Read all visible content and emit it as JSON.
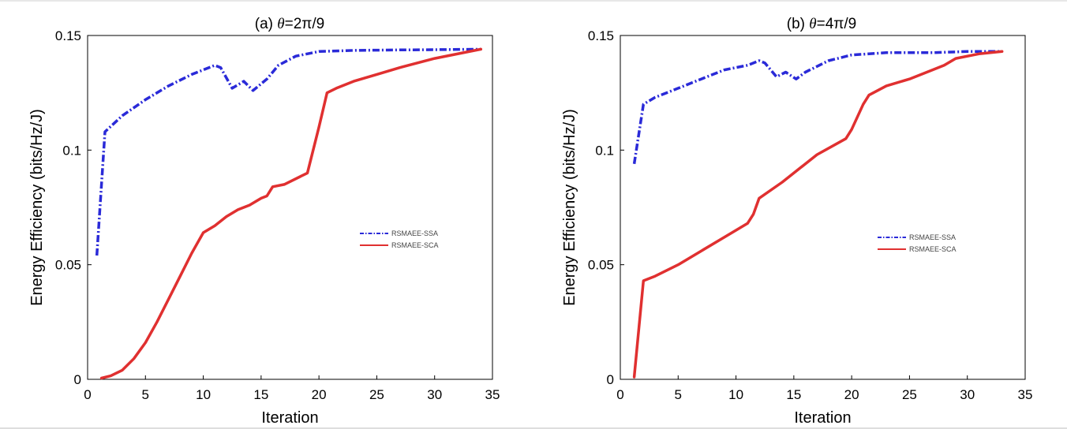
{
  "chart_data": [
    {
      "type": "line",
      "title_prefix": "(a) ",
      "title_symbol": "θ",
      "title_value": "=2π/9",
      "xlabel": "Iteration",
      "ylabel": "Energy Efficiency (bits/Hz/J)",
      "xlim": [
        0,
        35
      ],
      "ylim": [
        0,
        0.15
      ],
      "xticks": [
        "0",
        "5",
        "10",
        "15",
        "20",
        "25",
        "30",
        "35"
      ],
      "yticks": [
        "0",
        "0.05",
        "0.1",
        "0.15"
      ],
      "legend_position": "center-right",
      "series": [
        {
          "name": "RSMAEE-SSA",
          "color": "#2a2ad8",
          "style": "dash-dot",
          "x": [
            0.8,
            1.5,
            3,
            5,
            7,
            9,
            11,
            11.5,
            12.5,
            13.5,
            14.3,
            15.5,
            16.5,
            18,
            20,
            23,
            27,
            30,
            34
          ],
          "y": [
            0.054,
            0.108,
            0.115,
            0.122,
            0.128,
            0.133,
            0.137,
            0.136,
            0.127,
            0.13,
            0.126,
            0.131,
            0.137,
            0.141,
            0.143,
            0.1435,
            0.1437,
            0.1438,
            0.144
          ]
        },
        {
          "name": "RSMAEE-SCA",
          "color": "#e03030",
          "style": "solid",
          "x": [
            1.2,
            2,
            3,
            4,
            5,
            6,
            7,
            8,
            9,
            10,
            11,
            12,
            13,
            14,
            15,
            15.5,
            16,
            17,
            19,
            20,
            20.7,
            21.5,
            23,
            25,
            27,
            30,
            34
          ],
          "y": [
            0.0005,
            0.0015,
            0.004,
            0.009,
            0.016,
            0.025,
            0.035,
            0.045,
            0.055,
            0.064,
            0.067,
            0.071,
            0.074,
            0.076,
            0.079,
            0.08,
            0.084,
            0.085,
            0.09,
            0.11,
            0.125,
            0.127,
            0.13,
            0.133,
            0.136,
            0.14,
            0.144
          ]
        }
      ]
    },
    {
      "type": "line",
      "title_prefix": "(b) ",
      "title_symbol": "θ",
      "title_value": "=4π/9",
      "xlabel": "Iteration",
      "ylabel": "Energy Efficiency (bits/Hz/J)",
      "xlim": [
        0,
        35
      ],
      "ylim": [
        0,
        0.15
      ],
      "xticks": [
        "0",
        "5",
        "10",
        "15",
        "20",
        "25",
        "30",
        "35"
      ],
      "yticks": [
        "0",
        "0.05",
        "0.1",
        "0.15"
      ],
      "legend_position": "center-right",
      "series": [
        {
          "name": "RSMAEE-SSA",
          "color": "#2a2ad8",
          "style": "dash-dot",
          "x": [
            1.2,
            2,
            3,
            5,
            7,
            9,
            11,
            12,
            12.5,
            13.5,
            14.3,
            15.2,
            16,
            18,
            20,
            23,
            27,
            30,
            33
          ],
          "y": [
            0.094,
            0.12,
            0.123,
            0.127,
            0.131,
            0.135,
            0.137,
            0.139,
            0.138,
            0.132,
            0.134,
            0.131,
            0.134,
            0.139,
            0.1415,
            0.1425,
            0.1425,
            0.143,
            0.143
          ]
        },
        {
          "name": "RSMAEE-SCA",
          "color": "#e03030",
          "style": "solid",
          "x": [
            1.2,
            2,
            3,
            5,
            7,
            9,
            11,
            11.5,
            12,
            14,
            17,
            19.5,
            20,
            21,
            21.5,
            23,
            25,
            27,
            28,
            29,
            31,
            33
          ],
          "y": [
            0.001,
            0.043,
            0.045,
            0.05,
            0.056,
            0.062,
            0.068,
            0.072,
            0.079,
            0.086,
            0.098,
            0.105,
            0.109,
            0.12,
            0.124,
            0.128,
            0.131,
            0.135,
            0.137,
            0.14,
            0.142,
            0.143
          ]
        }
      ]
    }
  ]
}
